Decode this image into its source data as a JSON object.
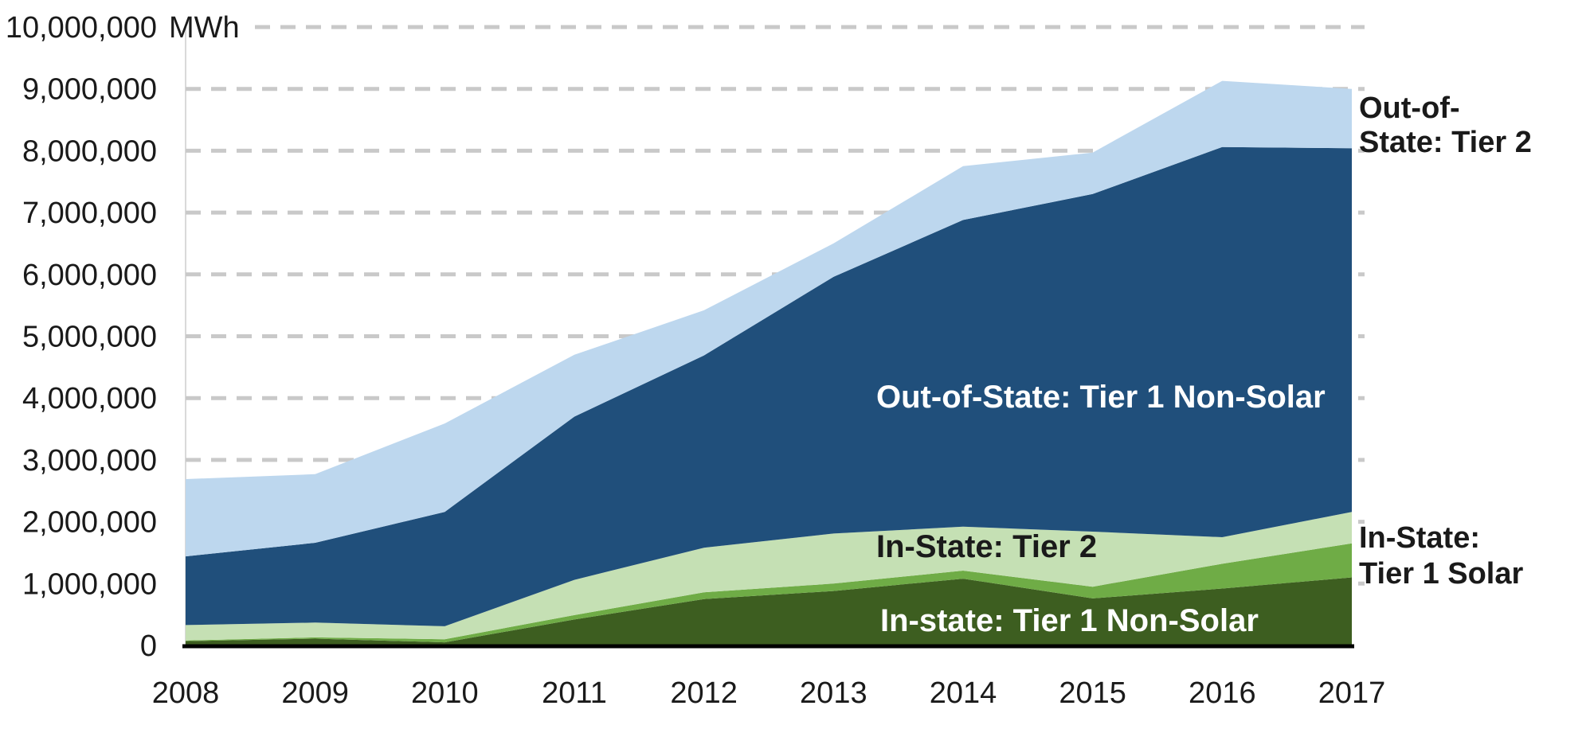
{
  "chart_data": {
    "type": "area",
    "stacked": true,
    "title": "",
    "x_categories": [
      "2008",
      "2009",
      "2010",
      "2011",
      "2012",
      "2013",
      "2014",
      "2015",
      "2016",
      "2017"
    ],
    "series": [
      {
        "key": "in_state_tier1_nonsolar",
        "name": "In-state: Tier 1 Non-Solar",
        "color": "#3D5E20",
        "values": [
          70000,
          110000,
          50000,
          420000,
          750000,
          880000,
          1080000,
          760000,
          920000,
          1100000
        ]
      },
      {
        "key": "in_state_tier1_solar",
        "name": "In-State: Tier 1 Solar",
        "color": "#6FAC46",
        "values": [
          10000,
          20000,
          50000,
          70000,
          110000,
          120000,
          130000,
          190000,
          400000,
          550000
        ]
      },
      {
        "key": "in_state_tier2",
        "name": "In-State: Tier 2",
        "color": "#C5E0B4",
        "values": [
          250000,
          240000,
          210000,
          570000,
          720000,
          810000,
          710000,
          890000,
          430000,
          510000
        ]
      },
      {
        "key": "out_of_state_tier1_nonsolar",
        "name": "Out-of-State: Tier 1 Non-Solar",
        "color": "#204F7B",
        "values": [
          1110000,
          1290000,
          1850000,
          2640000,
          3110000,
          4150000,
          4960000,
          5460000,
          6310000,
          5880000
        ]
      },
      {
        "key": "out_of_state_tier2",
        "name": "Out-of-State: Tier 2",
        "color": "#BDD7EE",
        "values": [
          1250000,
          1110000,
          1430000,
          1000000,
          730000,
          540000,
          870000,
          670000,
          1070000,
          960000
        ]
      }
    ],
    "y_axis": {
      "range": [
        0,
        10000000
      ],
      "tick_step": 1000000,
      "unit_suffix": "MWh",
      "tick_labels": [
        "0",
        "1,000,000",
        "2,000,000",
        "3,000,000",
        "4,000,000",
        "5,000,000",
        "6,000,000",
        "7,000,000",
        "8,000,000",
        "9,000,000",
        "10,000,000"
      ]
    },
    "grid": {
      "visible": true,
      "style": "dashed",
      "color": "#C9C9C9"
    },
    "legend_position": "labels-on-chart",
    "annotations": {
      "in_chart": [
        {
          "series": "out_of_state_tier1_nonsolar",
          "text": "Out-of-State: Tier 1 Non-Solar",
          "color": "#FFFFFF"
        },
        {
          "series": "in_state_tier2",
          "text": "In-State: Tier 2",
          "color": "#1A1A1A"
        },
        {
          "series": "in_state_tier1_nonsolar",
          "text": "In-state: Tier 1 Non-Solar",
          "color": "#FFFFFF"
        }
      ],
      "right_margin": [
        {
          "series": "out_of_state_tier2",
          "lines": [
            "Out-of-",
            "State: Tier 2"
          ],
          "color": "#1A1A1A"
        },
        {
          "series": "in_state_tier1_solar",
          "lines": [
            "In-State:",
            "Tier 1 Solar"
          ],
          "color": "#1A1A1A"
        }
      ]
    },
    "colors": {
      "axis_line": "#000000",
      "tick_text": "#1A1A1A",
      "gridline": "#C9C9C9",
      "left_axis_line": "#D9D9D9"
    }
  }
}
